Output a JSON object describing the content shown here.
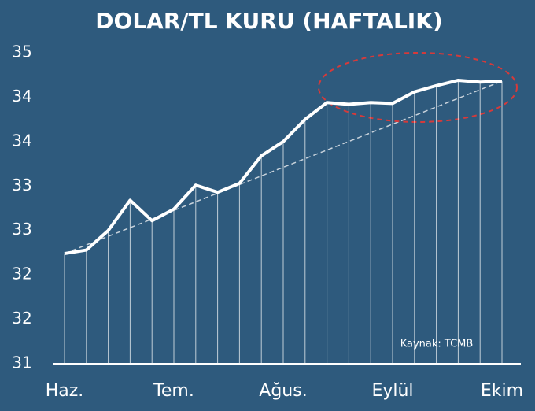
{
  "chart_data": {
    "type": "line",
    "title": "DOLAR/TL KURU (HAFTALIK)",
    "categories": [
      "Haz.",
      null,
      null,
      null,
      null,
      "Tem.",
      null,
      null,
      null,
      null,
      "Ağus.",
      null,
      null,
      null,
      null,
      "Eylül",
      null,
      null,
      null,
      null,
      "Ekim"
    ],
    "series": [
      {
        "color": "#ffffff",
        "values": [
          32.64,
          32.68,
          32.9,
          33.24,
          33.01,
          33.14,
          33.41,
          33.33,
          33.43,
          33.74,
          33.9,
          34.15,
          34.34,
          34.32,
          34.34,
          34.33,
          34.46,
          34.53,
          34.59,
          34.57,
          34.58
        ]
      }
    ],
    "ylim": [
      31.4,
      34.9
    ],
    "yticks": [
      {
        "value": 31.4,
        "label": "31"
      },
      {
        "value": 31.9,
        "label": "32"
      },
      {
        "value": 32.4,
        "label": "32"
      },
      {
        "value": 32.9,
        "label": "33"
      },
      {
        "value": 33.4,
        "label": "33"
      },
      {
        "value": 33.9,
        "label": "34"
      },
      {
        "value": 34.4,
        "label": "34"
      },
      {
        "value": 34.9,
        "label": "35"
      }
    ],
    "source": "Kaynak: TCMB"
  }
}
